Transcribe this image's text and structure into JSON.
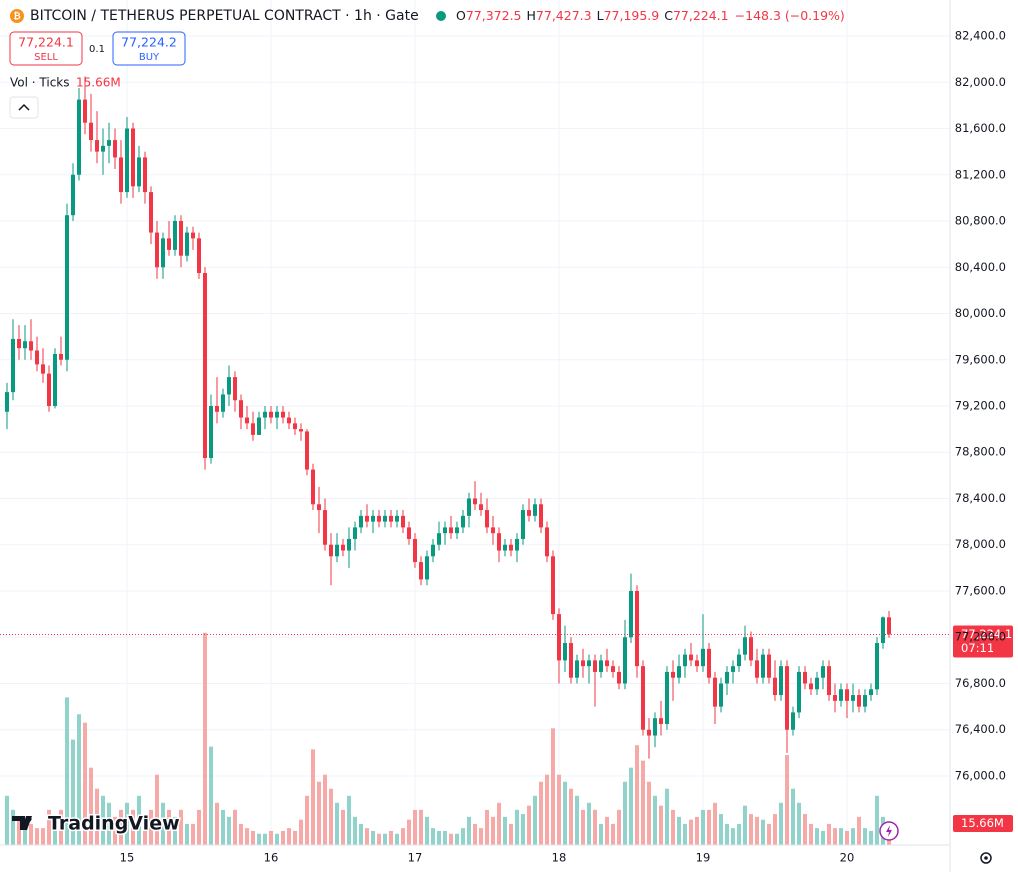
{
  "header": {
    "title": "BITCOIN / TETHERUS PERPETUAL CONTRACT · 1h · Gate",
    "o_label": "O",
    "o": "77,372.5",
    "h_label": "H",
    "h": "77,427.3",
    "l_label": "L",
    "l": "77,195.9",
    "c_label": "C",
    "c": "77,224.1",
    "change": "−148.3 (−0.19%)"
  },
  "trade": {
    "sell_price": "77,224.1",
    "sell": "SELL",
    "spread": "0.1",
    "buy_price": "77,224.2",
    "buy": "BUY"
  },
  "volume_legend": {
    "name": "Vol · Ticks",
    "value": "15.66M"
  },
  "logo": "TradingView",
  "chart_data": {
    "type": "candlestick",
    "categories": [
      null,
      null,
      null,
      null,
      null,
      null,
      null,
      null,
      null,
      null,
      null,
      null,
      null,
      null,
      null,
      null,
      null,
      null,
      null,
      null,
      "15",
      null,
      null,
      null,
      null,
      null,
      null,
      null,
      null,
      null,
      null,
      null,
      null,
      null,
      null,
      null,
      null,
      null,
      null,
      null,
      null,
      null,
      null,
      null,
      "16",
      null,
      null,
      null,
      null,
      null,
      null,
      null,
      null,
      null,
      null,
      null,
      null,
      null,
      null,
      null,
      null,
      null,
      null,
      null,
      null,
      null,
      null,
      null,
      "17",
      null,
      null,
      null,
      null,
      null,
      null,
      null,
      null,
      null,
      null,
      null,
      null,
      null,
      null,
      null,
      null,
      null,
      null,
      null,
      null,
      null,
      null,
      null,
      "18",
      null,
      null,
      null,
      null,
      null,
      null,
      null,
      null,
      null,
      null,
      null,
      null,
      null,
      null,
      null,
      null,
      null,
      null,
      null,
      null,
      null,
      null,
      null,
      "19",
      null,
      null,
      null,
      null,
      null,
      null,
      null,
      null,
      null,
      null,
      null,
      null,
      null,
      null,
      null,
      null,
      null,
      null,
      null,
      null,
      null,
      null,
      null,
      "20",
      null,
      null,
      null,
      null,
      null,
      null,
      null
    ],
    "open": [
      79150,
      79320,
      79780,
      79700,
      79760,
      79680,
      79560,
      79480,
      79200,
      79650,
      79600,
      80850,
      81200,
      81850,
      81650,
      81500,
      81400,
      81450,
      81500,
      81350,
      81050,
      81600,
      81100,
      81350,
      81050,
      80700,
      80400,
      80650,
      80550,
      80800,
      80500,
      80700,
      80650,
      80350,
      78750,
      79200,
      79150,
      79300,
      79450,
      79250,
      79100,
      79050,
      78950,
      79100,
      79150,
      79100,
      79150,
      79100,
      79050,
      79000,
      78980,
      78650,
      78350,
      78300,
      78000,
      77900,
      78000,
      77950,
      78050,
      78150,
      78250,
      78200,
      78250,
      78200,
      78250,
      78200,
      78250,
      78150,
      78050,
      77850,
      77700,
      77900,
      78000,
      78100,
      78150,
      78100,
      78150,
      78250,
      78400,
      78350,
      78300,
      78150,
      78100,
      77950,
      78000,
      77950,
      78050,
      78300,
      78250,
      78350,
      78150,
      77900,
      77400,
      77000,
      77150,
      76850,
      77000,
      76950,
      77000,
      76900,
      77000,
      76950,
      76900,
      76800,
      77200,
      77600,
      76950,
      76400,
      76350,
      76500,
      76450,
      76900,
      76850,
      76950,
      77050,
      77000,
      76950,
      77100,
      76850,
      76600,
      76800,
      76900,
      76950,
      77050,
      77200,
      77000,
      76850,
      77050,
      76850,
      76700,
      76950,
      76400,
      76550,
      76900,
      76800,
      76750,
      76850,
      76950,
      76700,
      76650,
      76750,
      76650,
      76700,
      76600,
      76700,
      76750,
      77150,
      77372.5
    ],
    "high": [
      79400,
      79950,
      79900,
      79900,
      79950,
      79800,
      79700,
      79550,
      79700,
      79800,
      80950,
      81300,
      81950,
      82050,
      81900,
      81750,
      81600,
      81650,
      81600,
      81500,
      81700,
      81650,
      81450,
      81400,
      81100,
      80800,
      80700,
      80800,
      80850,
      80850,
      80750,
      80750,
      80700,
      80400,
      79300,
      79450,
      79350,
      79550,
      79500,
      79300,
      79200,
      79150,
      79150,
      79200,
      79200,
      79200,
      79200,
      79150,
      79100,
      79050,
      79000,
      78700,
      78500,
      78400,
      78100,
      78100,
      78050,
      78150,
      78200,
      78300,
      78350,
      78300,
      78300,
      78300,
      78300,
      78300,
      78300,
      78200,
      78100,
      77900,
      77950,
      78050,
      78200,
      78200,
      78250,
      78200,
      78300,
      78450,
      78550,
      78450,
      78400,
      78250,
      78150,
      78050,
      78050,
      78100,
      78350,
      78400,
      78400,
      78400,
      78200,
      77950,
      77450,
      77300,
      77200,
      77050,
      77100,
      77050,
      77050,
      77050,
      77100,
      77000,
      76950,
      77350,
      77750,
      77650,
      77000,
      76500,
      76550,
      76650,
      76950,
      77000,
      77050,
      77100,
      77150,
      77050,
      77400,
      77150,
      76900,
      76850,
      76950,
      77000,
      77100,
      77300,
      77250,
      77100,
      77100,
      77100,
      77000,
      77000,
      77000,
      76600,
      76950,
      76950,
      76850,
      76900,
      77000,
      77000,
      76800,
      76800,
      76800,
      76800,
      76750,
      76750,
      76800,
      77200,
      77380,
      77427.3
    ],
    "low": [
      79000,
      79250,
      79600,
      79600,
      79600,
      79500,
      79400,
      79150,
      79180,
      79550,
      79500,
      80800,
      81150,
      81550,
      81400,
      81300,
      81200,
      81300,
      81250,
      80950,
      81000,
      81000,
      81050,
      80950,
      80600,
      80300,
      80300,
      80500,
      80500,
      80400,
      80450,
      80550,
      80300,
      78650,
      78700,
      79050,
      79100,
      79200,
      79150,
      79000,
      79000,
      78900,
      78950,
      79000,
      79050,
      79000,
      79050,
      79000,
      78950,
      78900,
      78600,
      78300,
      78100,
      77950,
      77650,
      77850,
      77900,
      77800,
      77950,
      78100,
      78150,
      78100,
      78150,
      78150,
      78150,
      78150,
      78100,
      78000,
      77800,
      77650,
      77650,
      77850,
      77950,
      78000,
      78050,
      78050,
      78100,
      78150,
      78300,
      78250,
      78100,
      78000,
      77850,
      77900,
      77900,
      77850,
      78000,
      78200,
      78200,
      78100,
      77850,
      77350,
      76800,
      76900,
      76800,
      76800,
      76850,
      76800,
      76600,
      76850,
      76900,
      76850,
      76750,
      76750,
      77150,
      76850,
      76350,
      76150,
      76250,
      76350,
      76400,
      76650,
      76800,
      76850,
      76950,
      76900,
      76900,
      76800,
      76450,
      76550,
      76700,
      76800,
      76900,
      77000,
      76950,
      76800,
      76800,
      76800,
      76650,
      76650,
      76200,
      76350,
      76500,
      76750,
      76700,
      76700,
      76750,
      76650,
      76550,
      76600,
      76500,
      76550,
      76550,
      76550,
      76650,
      76700,
      77100,
      77195.9
    ],
    "close": [
      79320,
      79780,
      79700,
      79760,
      79680,
      79560,
      79480,
      79200,
      79650,
      79600,
      80850,
      81200,
      81850,
      81650,
      81500,
      81400,
      81450,
      81500,
      81350,
      81050,
      81600,
      81100,
      81350,
      81050,
      80700,
      80400,
      80650,
      80550,
      80800,
      80500,
      80700,
      80650,
      80350,
      78750,
      79200,
      79150,
      79300,
      79450,
      79250,
      79100,
      79050,
      78950,
      79100,
      79150,
      79100,
      79150,
      79100,
      79050,
      79000,
      78980,
      78650,
      78350,
      78300,
      78000,
      77900,
      78000,
      77950,
      78050,
      78150,
      78250,
      78200,
      78250,
      78200,
      78250,
      78200,
      78250,
      78150,
      78050,
      77850,
      77700,
      77900,
      78000,
      78100,
      78150,
      78100,
      78150,
      78250,
      78400,
      78350,
      78300,
      78150,
      78100,
      77950,
      78000,
      77950,
      78050,
      78300,
      78250,
      78350,
      78150,
      77900,
      77400,
      77000,
      77150,
      76850,
      77000,
      76950,
      77000,
      76900,
      77000,
      76950,
      76900,
      76800,
      77200,
      77600,
      76950,
      76400,
      76350,
      76500,
      76450,
      76900,
      76850,
      76950,
      77050,
      77000,
      76950,
      77100,
      76850,
      76600,
      76800,
      76900,
      76950,
      77050,
      77200,
      77000,
      76850,
      77050,
      76850,
      76700,
      76950,
      76400,
      76550,
      76900,
      76800,
      76750,
      76850,
      76950,
      76700,
      76650,
      76750,
      76650,
      76700,
      76600,
      76700,
      76750,
      77150,
      77372.5,
      77224.1
    ],
    "volume": [
      35,
      25,
      20,
      15,
      15,
      12,
      12,
      25,
      20,
      25,
      105,
      75,
      93,
      87,
      55,
      40,
      35,
      30,
      20,
      25,
      30,
      25,
      35,
      22,
      25,
      50,
      30,
      25,
      20,
      25,
      15,
      15,
      25,
      151,
      70,
      30,
      25,
      20,
      25,
      15,
      12,
      10,
      8,
      8,
      10,
      8,
      10,
      12,
      10,
      18,
      35,
      68,
      45,
      50,
      40,
      30,
      25,
      35,
      20,
      15,
      12,
      10,
      8,
      8,
      10,
      8,
      12,
      18,
      25,
      25,
      20,
      12,
      10,
      10,
      8,
      8,
      12,
      20,
      15,
      12,
      25,
      20,
      30,
      20,
      15,
      25,
      22,
      28,
      35,
      45,
      50,
      83,
      50,
      45,
      40,
      35,
      25,
      30,
      25,
      15,
      20,
      15,
      25,
      45,
      55,
      71,
      60,
      45,
      35,
      28,
      40,
      25,
      20,
      15,
      18,
      20,
      25,
      25,
      30,
      22,
      15,
      12,
      15,
      28,
      22,
      20,
      18,
      15,
      22,
      30,
      64,
      40,
      30,
      22,
      15,
      12,
      10,
      15,
      12,
      12,
      10,
      12,
      20,
      12,
      10,
      35,
      20,
      15.66
    ],
    "last_volume_label": "15.66M",
    "last_price_label": "77,224.1",
    "countdown": "07:11",
    "ylim": [
      75403.2,
      82711.4
    ],
    "yticks": [
      {
        "value": 76000,
        "label": "76,000.0"
      },
      {
        "value": 76400,
        "label": "76,400.0"
      },
      {
        "value": 76800,
        "label": "76,800.0"
      },
      {
        "value": 77200,
        "label": "77,200.0"
      },
      {
        "value": 77600,
        "label": "77,600.0"
      },
      {
        "value": 78000,
        "label": "78,000.0"
      },
      {
        "value": 78400,
        "label": "78,400.0"
      },
      {
        "value": 78800,
        "label": "78,800.0"
      },
      {
        "value": 79200,
        "label": "79,200.0"
      },
      {
        "value": 79600,
        "label": "79,600.0"
      },
      {
        "value": 80000,
        "label": "80,000.0"
      },
      {
        "value": 80400,
        "label": "80,400.0"
      },
      {
        "value": 80800,
        "label": "80,800.0"
      },
      {
        "value": 81200,
        "label": "81,200.0"
      },
      {
        "value": 81600,
        "label": "81,600.0"
      },
      {
        "value": 82000,
        "label": "82,000.0"
      },
      {
        "value": 82400,
        "label": "82,400.0"
      }
    ],
    "vlim": [
      0,
      601
    ],
    "up_color": "#089981",
    "down_color": "#f23645",
    "volume_up_color": "#8fd3cb",
    "volume_down_color": "#f7a9a7",
    "grid": true
  }
}
